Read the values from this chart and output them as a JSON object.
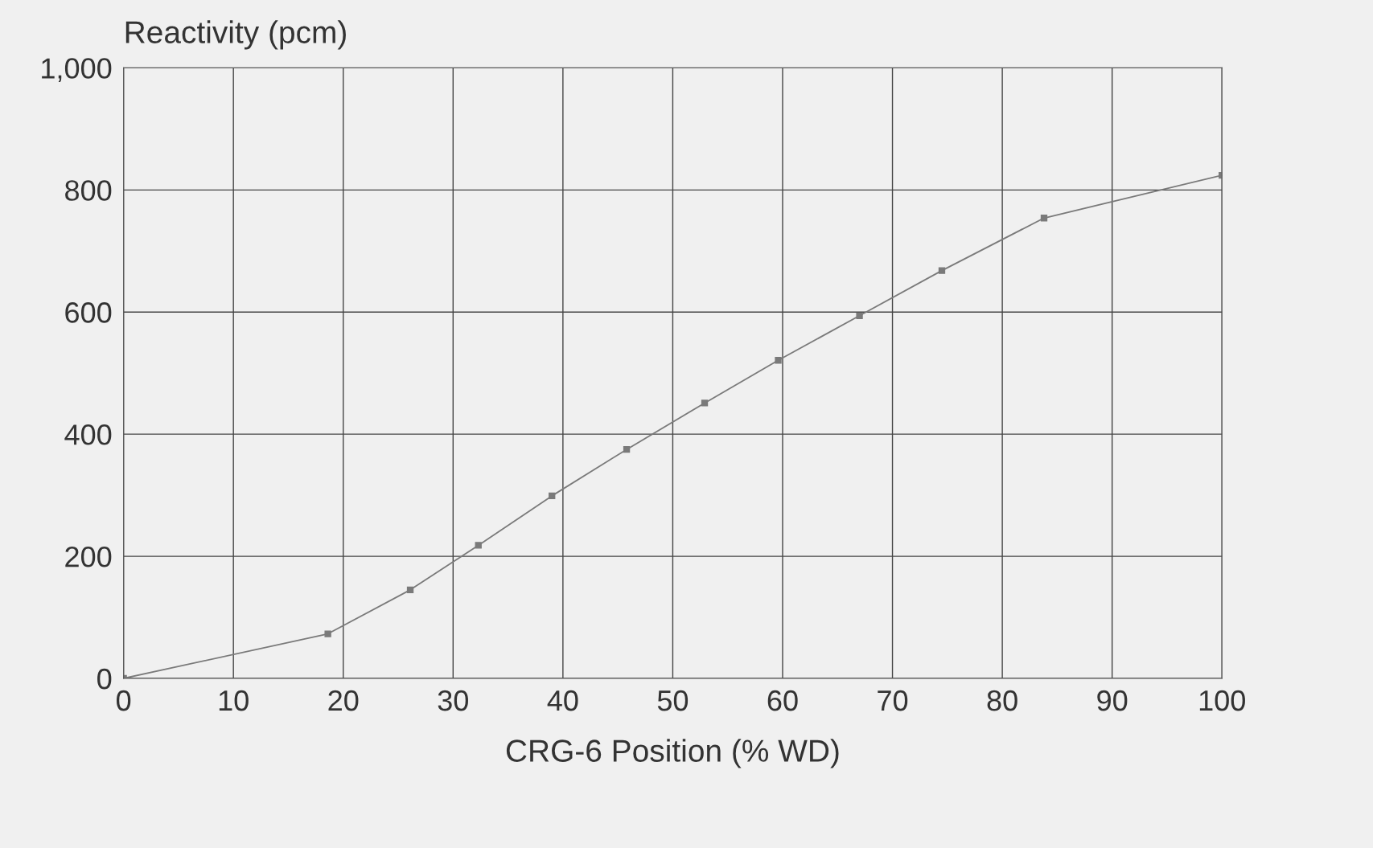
{
  "chart_data": {
    "type": "line",
    "ylabel": "Reactivity (pcm)",
    "xlabel": "CRG-6 Position (% WD)",
    "series": [
      {
        "x": [
          0,
          18.6,
          26.1,
          32.3,
          39.0,
          45.8,
          52.9,
          59.6,
          67.0,
          74.5,
          83.8,
          100
        ],
        "values": [
          0,
          73,
          145,
          218,
          299,
          375,
          451,
          521,
          594,
          668,
          754,
          824
        ],
        "color": "#7a7a7a"
      }
    ],
    "xlim": [
      0,
      100
    ],
    "xticks": [
      0,
      10,
      20,
      30,
      40,
      50,
      60,
      70,
      80,
      90,
      100
    ],
    "ylim": [
      0,
      1000
    ],
    "yticks": [
      0,
      200,
      400,
      600,
      800,
      {
        "value": 1000,
        "label": "1,000"
      }
    ],
    "grid": true,
    "marker": "square",
    "line_style": "solid"
  }
}
